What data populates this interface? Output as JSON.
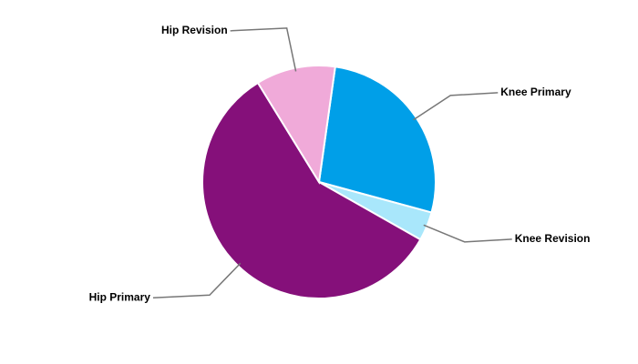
{
  "chart_data": {
    "type": "pie",
    "categories": [
      "Knee Primary",
      "Knee Revision",
      "Hip Primary",
      "Hip Revision"
    ],
    "values": [
      27,
      4,
      58,
      11
    ],
    "colors": [
      "#009fe8",
      "#a9e7fb",
      "#85107a",
      "#f0aad9"
    ]
  }
}
